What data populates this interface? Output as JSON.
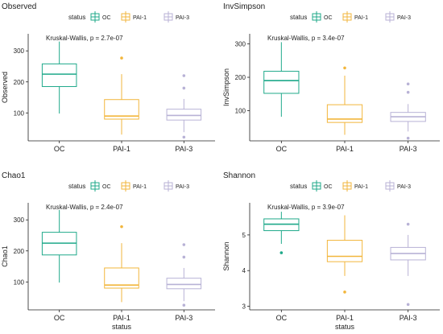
{
  "colors": {
    "OC": "#1fa98a",
    "PAI-1": "#f2b63c",
    "PAI-3": "#b8b2d6",
    "axis": "#222222"
  },
  "chart_data": [
    {
      "type": "box",
      "title": "Observed",
      "xlabel": "status",
      "ylabel": "Observed",
      "annotation": "Kruskal-Wallis, p = 2.7e-07",
      "legend": {
        "title": "status",
        "entries": [
          "OC",
          "PAI-1",
          "PAI-3"
        ],
        "position": "top"
      },
      "categories": [
        "OC",
        "PAI-1",
        "PAI-3"
      ],
      "yticks": [
        100,
        200,
        300
      ],
      "ylim": [
        10,
        355
      ],
      "boxes": [
        {
          "group": "OC",
          "min": 98,
          "q1": 185,
          "median": 225,
          "q3": 258,
          "max": 330,
          "outliers": []
        },
        {
          "group": "PAI-1",
          "min": 30,
          "q1": 80,
          "median": 90,
          "q3": 143,
          "max": 225,
          "outliers": [
            277
          ]
        },
        {
          "group": "PAI-3",
          "min": 38,
          "q1": 77,
          "median": 92,
          "q3": 112,
          "max": 145,
          "outliers": [
            180,
            220,
            22
          ]
        }
      ],
      "show_xlabel": false
    },
    {
      "type": "box",
      "title": "InvSimpson",
      "xlabel": "status",
      "ylabel": "InvSimpson",
      "annotation": "Kruskal-Wallis, p = 3.4e-07",
      "legend": {
        "title": "status",
        "entries": [
          "OC",
          "PAI-1",
          "PAI-3"
        ],
        "position": "top"
      },
      "categories": [
        "OC",
        "PAI-1",
        "PAI-3"
      ],
      "yticks": [
        100,
        200,
        300
      ],
      "ylim": [
        10,
        330
      ],
      "boxes": [
        {
          "group": "OC",
          "min": 82,
          "q1": 152,
          "median": 190,
          "q3": 218,
          "max": 305,
          "outliers": []
        },
        {
          "group": "PAI-1",
          "min": 28,
          "q1": 65,
          "median": 75,
          "q3": 118,
          "max": 205,
          "outliers": [
            228
          ]
        },
        {
          "group": "PAI-3",
          "min": 38,
          "q1": 68,
          "median": 82,
          "q3": 95,
          "max": 120,
          "outliers": [
            155,
            180,
            18
          ]
        }
      ],
      "show_xlabel": false
    },
    {
      "type": "box",
      "title": "Chao1",
      "xlabel": "status",
      "ylabel": "Chao1",
      "annotation": "Kruskal-Wallis, p = 2.4e-07",
      "legend": {
        "title": "status",
        "entries": [
          "OC",
          "PAI-1",
          "PAI-3"
        ],
        "position": "top"
      },
      "categories": [
        "OC",
        "PAI-1",
        "PAI-3"
      ],
      "yticks": [
        100,
        200,
        300
      ],
      "ylim": [
        10,
        355
      ],
      "boxes": [
        {
          "group": "OC",
          "min": 98,
          "q1": 187,
          "median": 225,
          "q3": 260,
          "max": 332,
          "outliers": []
        },
        {
          "group": "PAI-1",
          "min": 35,
          "q1": 80,
          "median": 90,
          "q3": 145,
          "max": 225,
          "outliers": [
            278
          ]
        },
        {
          "group": "PAI-3",
          "min": 38,
          "q1": 78,
          "median": 92,
          "q3": 112,
          "max": 145,
          "outliers": [
            180,
            220,
            25
          ]
        }
      ],
      "show_xlabel": true
    },
    {
      "type": "box",
      "title": "Shannon",
      "xlabel": "status",
      "ylabel": "Shannon",
      "annotation": "Kruskal-Wallis, p = 3.9e-07",
      "legend": {
        "title": "status",
        "entries": [
          "OC",
          "PAI-1",
          "PAI-3"
        ],
        "position": "top"
      },
      "categories": [
        "OC",
        "PAI-1",
        "PAI-3"
      ],
      "yticks": [
        3,
        4,
        5
      ],
      "ylim": [
        2.9,
        5.9
      ],
      "boxes": [
        {
          "group": "OC",
          "min": 4.75,
          "q1": 5.12,
          "median": 5.3,
          "q3": 5.45,
          "max": 5.65,
          "outliers": [
            4.5
          ]
        },
        {
          "group": "PAI-1",
          "min": 3.85,
          "q1": 4.25,
          "median": 4.4,
          "q3": 4.85,
          "max": 5.55,
          "outliers": [
            3.4
          ]
        },
        {
          "group": "PAI-3",
          "min": 3.85,
          "q1": 4.3,
          "median": 4.48,
          "q3": 4.65,
          "max": 5.0,
          "outliers": [
            5.3,
            3.05
          ]
        }
      ],
      "show_xlabel": true
    }
  ]
}
